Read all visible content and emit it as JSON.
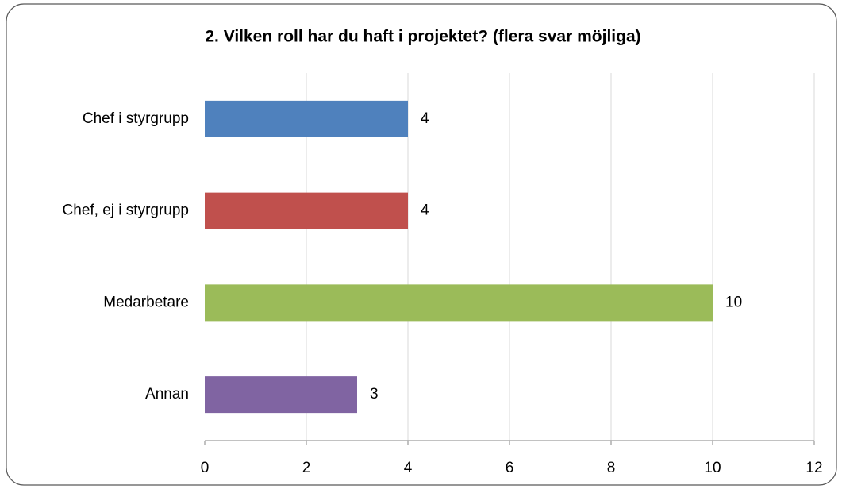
{
  "chart_data": {
    "type": "bar",
    "orientation": "horizontal",
    "title": "2. Vilken roll har du haft i projektet? (flera svar möjliga)",
    "categories": [
      "Chef i styrgrupp",
      "Chef, ej i styrgrupp",
      "Medarbetare",
      "Annan"
    ],
    "values": [
      4,
      4,
      10,
      3
    ],
    "colors": [
      "#4f81bd",
      "#c0504d",
      "#9bbb59",
      "#8064a2"
    ],
    "xlim": [
      0,
      12
    ],
    "xticks": [
      0,
      2,
      4,
      6,
      8,
      10,
      12
    ],
    "grid": true
  }
}
